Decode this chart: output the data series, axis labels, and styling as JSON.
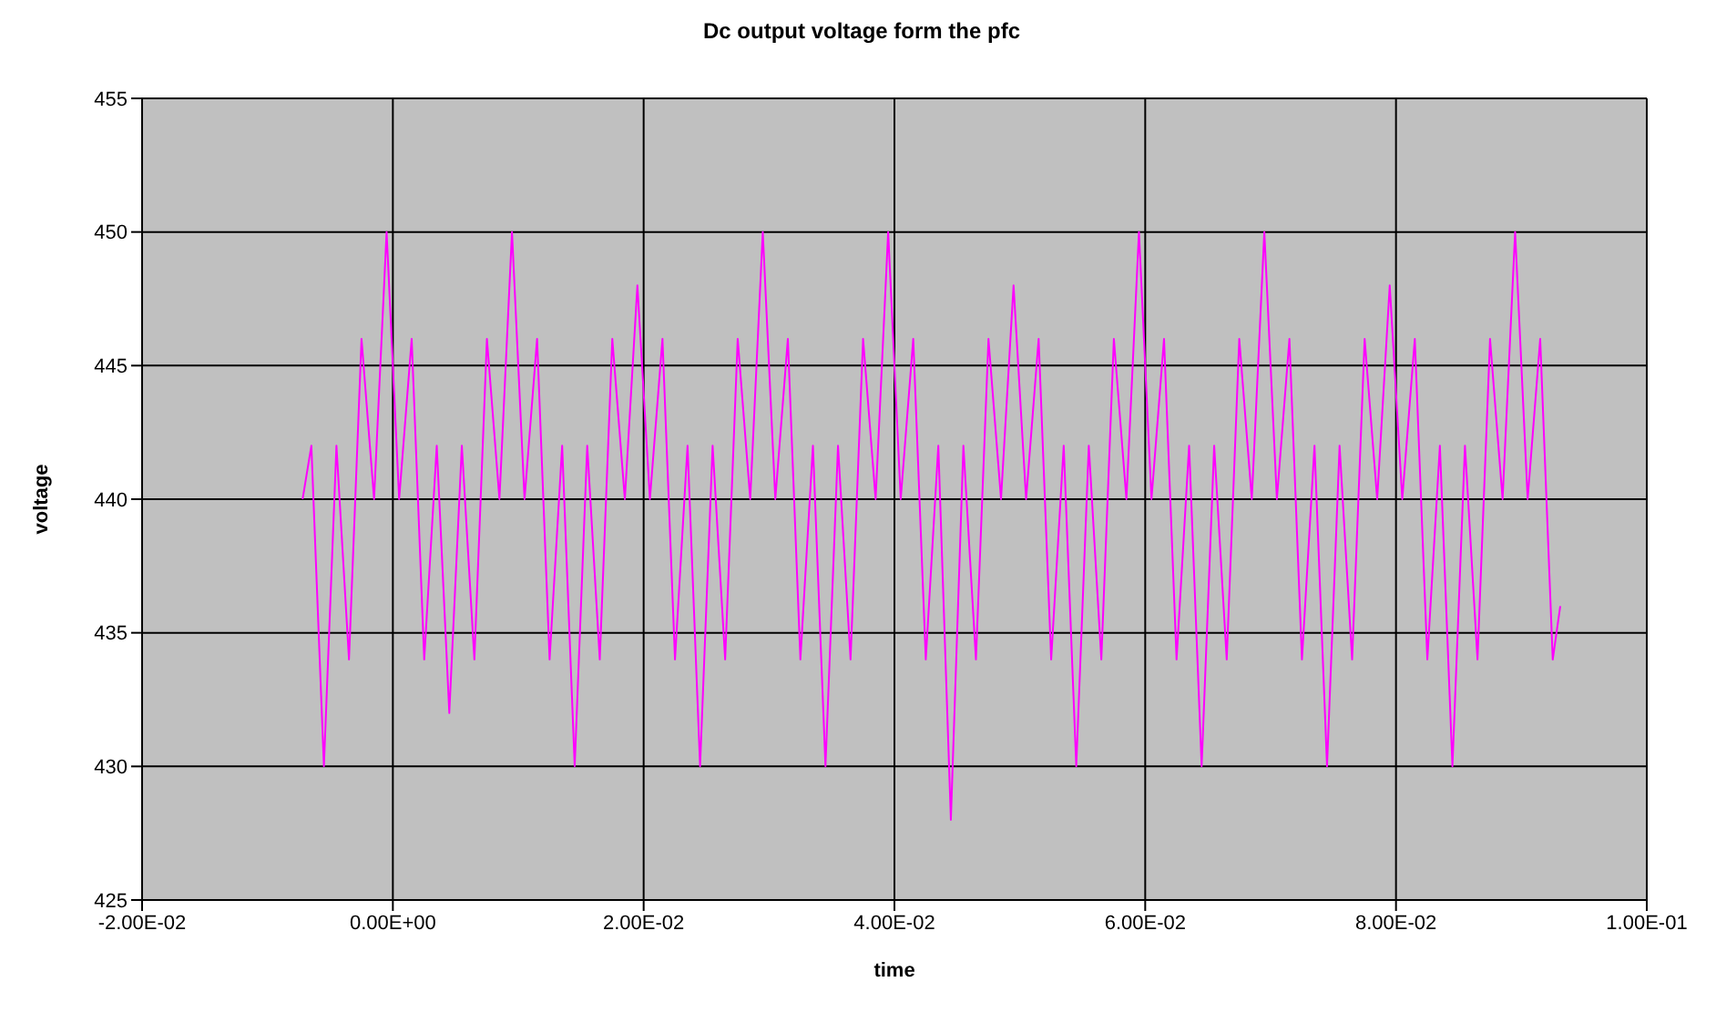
{
  "chart_data": {
    "type": "line",
    "title": "Dc output voltage form the pfc",
    "xlabel": "time",
    "ylabel": "voltage",
    "xlim": [
      -0.02,
      0.1
    ],
    "xticks": [
      {
        "value": -0.02,
        "label": "-2.00E-02"
      },
      {
        "value": 0,
        "label": "0.00E+00"
      },
      {
        "value": 0.02,
        "label": "2.00E-02"
      },
      {
        "value": 0.04,
        "label": "4.00E-02"
      },
      {
        "value": 0.06,
        "label": "6.00E-02"
      },
      {
        "value": 0.08,
        "label": "8.00E-02"
      },
      {
        "value": 0.1,
        "label": "1.00E-01"
      }
    ],
    "ylim": [
      425,
      455
    ],
    "yticks": [
      425,
      430,
      435,
      440,
      445,
      450,
      455
    ],
    "grid": true,
    "legend": false,
    "x": [
      -0.0072,
      -0.0065,
      -0.0055,
      -0.0045,
      -0.0035,
      -0.0025,
      -0.0015,
      -0.0005,
      0.0005,
      0.0015,
      0.0025,
      0.0035,
      0.0045,
      0.0055,
      0.0065,
      0.0075,
      0.0085,
      0.0095,
      0.0105,
      0.0115,
      0.0125,
      0.0135,
      0.0145,
      0.0155,
      0.0165,
      0.0175,
      0.0185,
      0.0195,
      0.0205,
      0.0215,
      0.0225,
      0.0235,
      0.0245,
      0.0255,
      0.0265,
      0.0275,
      0.0285,
      0.0295,
      0.0305,
      0.0315,
      0.0325,
      0.0335,
      0.0345,
      0.0355,
      0.0365,
      0.0375,
      0.0385,
      0.0395,
      0.0405,
      0.0415,
      0.0425,
      0.0435,
      0.0445,
      0.0455,
      0.0465,
      0.0475,
      0.0485,
      0.0495,
      0.0505,
      0.0515,
      0.0525,
      0.0535,
      0.0545,
      0.0555,
      0.0565,
      0.0575,
      0.0585,
      0.0595,
      0.0605,
      0.0615,
      0.0625,
      0.0635,
      0.0645,
      0.0655,
      0.0665,
      0.0675,
      0.0685,
      0.0695,
      0.0705,
      0.0715,
      0.0725,
      0.0735,
      0.0745,
      0.0755,
      0.0765,
      0.0775,
      0.0785,
      0.0795,
      0.0805,
      0.0815,
      0.0825,
      0.0835,
      0.0845,
      0.0855,
      0.0865,
      0.0875,
      0.0885,
      0.0895,
      0.0905,
      0.0915,
      0.0925,
      0.0931
    ],
    "series": [
      {
        "color": "#ff00ff",
        "values": [
          440,
          442,
          430,
          442,
          434,
          446,
          440,
          450,
          440,
          446,
          434,
          442,
          432,
          442,
          434,
          446,
          440,
          450,
          440,
          446,
          434,
          442,
          430,
          442,
          434,
          446,
          440,
          448,
          440,
          446,
          434,
          442,
          430,
          442,
          434,
          446,
          440,
          450,
          440,
          446,
          434,
          442,
          430,
          442,
          434,
          446,
          440,
          450,
          440,
          446,
          434,
          442,
          428,
          442,
          434,
          446,
          440,
          448,
          440,
          446,
          434,
          442,
          430,
          442,
          434,
          446,
          440,
          450,
          440,
          446,
          434,
          442,
          430,
          442,
          434,
          446,
          440,
          450,
          440,
          446,
          434,
          442,
          430,
          442,
          434,
          446,
          440,
          448,
          440,
          446,
          434,
          442,
          430,
          442,
          434,
          446,
          440,
          450,
          440,
          446,
          434,
          436
        ]
      }
    ]
  }
}
